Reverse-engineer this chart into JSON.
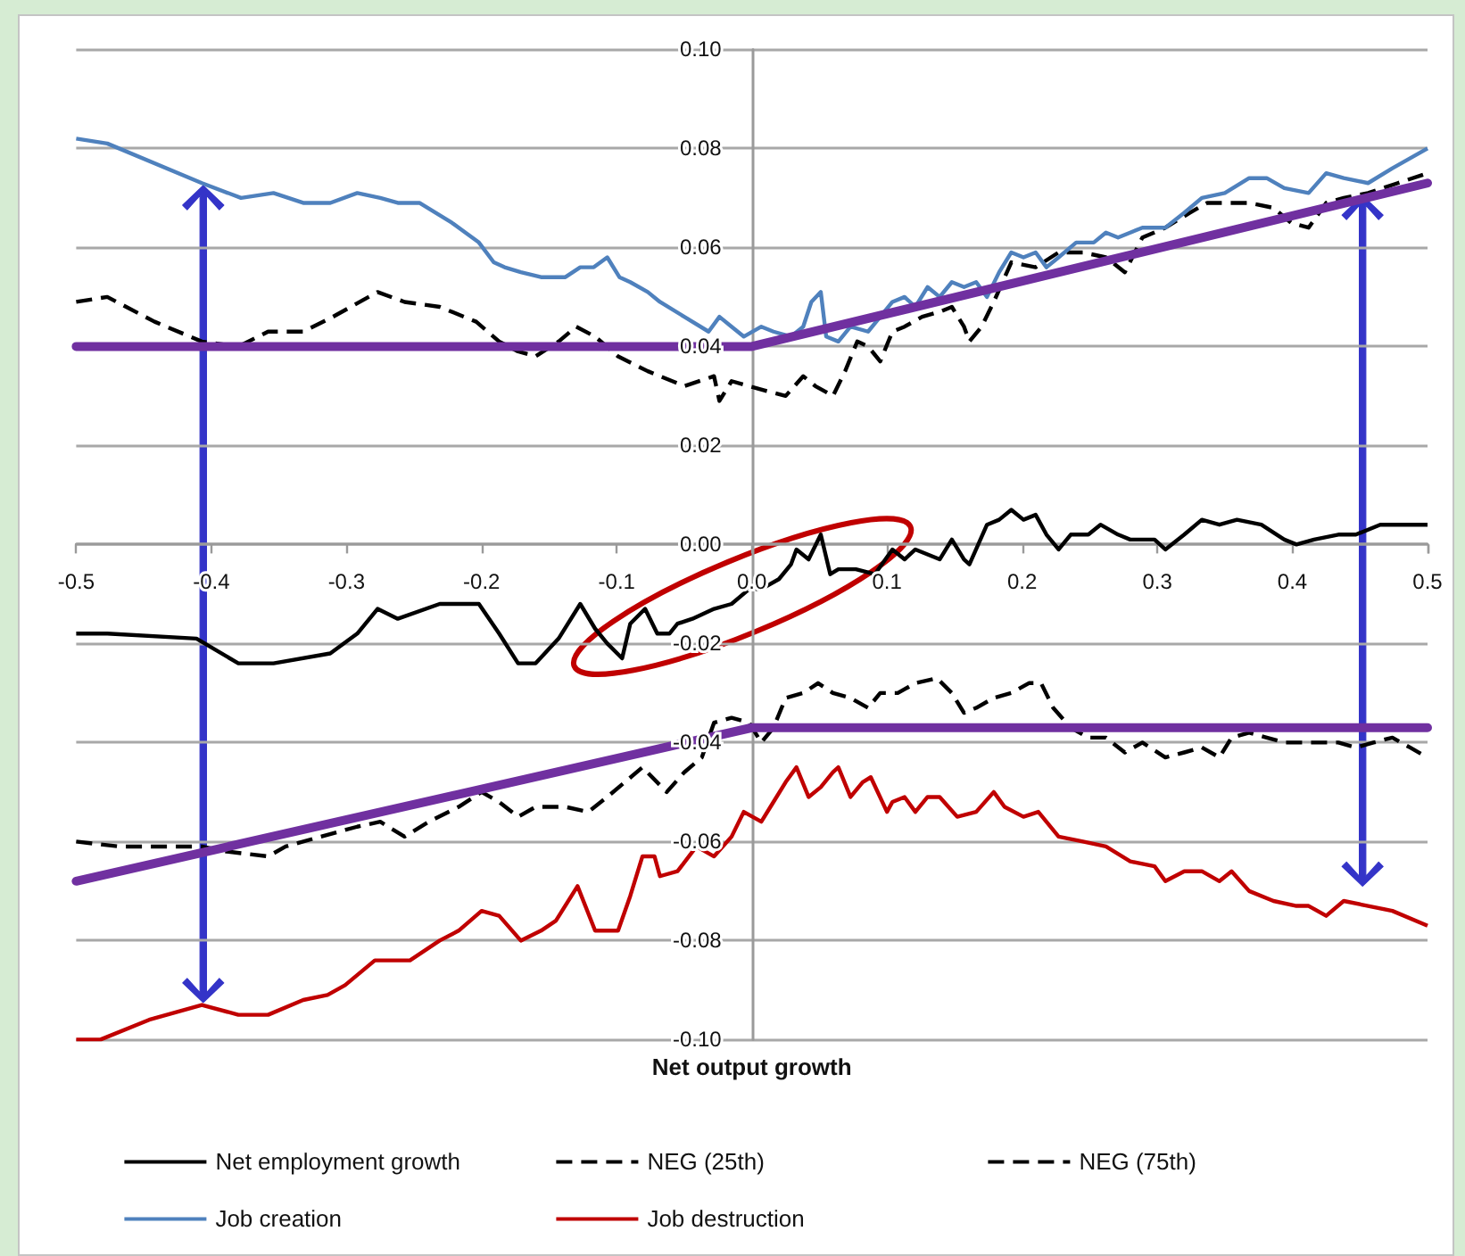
{
  "chart_data": {
    "type": "line",
    "xlabel": "Net output growth",
    "xlim": [
      -0.5,
      0.5
    ],
    "xticks": [
      -0.5,
      -0.4,
      -0.3,
      -0.2,
      -0.1,
      {
        "value": 0,
        "label": "0.0"
      },
      0.1,
      0.2,
      0.3,
      0.4,
      0.5
    ],
    "ylim": [
      -0.1,
      0.1
    ],
    "yticks": [
      {
        "value": -0.1,
        "label": "-0.10"
      },
      {
        "value": -0.08,
        "label": "-0.08"
      },
      {
        "value": -0.06,
        "label": "-0.06"
      },
      {
        "value": -0.04,
        "label": "-0.04"
      },
      {
        "value": -0.02,
        "label": "-0.02"
      },
      {
        "value": 0,
        "label": "0.00"
      },
      {
        "value": 0.02,
        "label": "0.02"
      },
      {
        "value": 0.04,
        "label": "0.04"
      },
      {
        "value": 0.06,
        "label": "0.06"
      },
      {
        "value": 0.08,
        "label": "0.08"
      },
      {
        "value": 0.1,
        "label": "0.10"
      }
    ],
    "grid": "y",
    "legend": "bottom",
    "marker": "none",
    "series": [
      {
        "name": "Net employment growth",
        "color": "#000000",
        "line_style": "solid",
        "x": [
          -0.5,
          -0.477,
          -0.411,
          -0.38,
          -0.354,
          -0.312,
          -0.292,
          -0.277,
          -0.262,
          -0.231,
          -0.202,
          -0.187,
          -0.173,
          -0.16,
          -0.143,
          -0.127,
          -0.116,
          -0.107,
          -0.096,
          -0.09,
          -0.079,
          -0.07,
          -0.061,
          -0.055,
          -0.044,
          -0.028,
          -0.015,
          -0.002,
          0.007,
          0.02,
          0.029,
          0.033,
          0.042,
          0.051,
          0.058,
          0.064,
          0.077,
          0.091,
          0.104,
          0.113,
          0.121,
          0.139,
          0.148,
          0.157,
          0.161,
          0.174,
          0.183,
          0.192,
          0.201,
          0.21,
          0.218,
          0.227,
          0.236,
          0.249,
          0.258,
          0.271,
          0.28,
          0.298,
          0.306,
          0.32,
          0.333,
          0.346,
          0.359,
          0.377,
          0.394,
          0.403,
          0.416,
          0.434,
          0.447,
          0.465,
          0.482,
          0.5
        ],
        "values": [
          -0.018,
          -0.018,
          -0.019,
          -0.024,
          -0.024,
          -0.022,
          -0.018,
          -0.013,
          -0.015,
          -0.012,
          -0.012,
          -0.018,
          -0.024,
          -0.024,
          -0.019,
          -0.012,
          -0.017,
          -0.02,
          -0.023,
          -0.016,
          -0.013,
          -0.018,
          -0.018,
          -0.016,
          -0.015,
          -0.013,
          -0.012,
          -0.009,
          -0.009,
          -0.007,
          -0.004,
          -0.001,
          -0.003,
          0.002,
          -0.006,
          -0.005,
          -0.005,
          -0.006,
          -0.001,
          -0.003,
          -0.001,
          -0.003,
          0.001,
          -0.003,
          -0.004,
          0.004,
          0.005,
          0.007,
          0.005,
          0.006,
          0.002,
          -0.001,
          0.002,
          0.002,
          0.004,
          0.002,
          0.001,
          0.001,
          -0.001,
          0.002,
          0.005,
          0.004,
          0.005,
          0.004,
          0.001,
          0,
          0.001,
          0.002,
          0.002,
          0.004,
          0.004,
          0.004
        ]
      },
      {
        "name": "NEG (25th)",
        "color": "#000000",
        "line_style": "dashed",
        "x": [
          -0.5,
          -0.468,
          -0.438,
          -0.407,
          -0.389,
          -0.358,
          -0.345,
          -0.319,
          -0.292,
          -0.275,
          -0.257,
          -0.239,
          -0.217,
          -0.2,
          -0.187,
          -0.173,
          -0.16,
          -0.138,
          -0.121,
          -0.107,
          -0.081,
          -0.063,
          -0.05,
          -0.037,
          -0.028,
          -0.015,
          -0.002,
          0.007,
          0.016,
          0.025,
          0.038,
          0.049,
          0.06,
          0.073,
          0.086,
          0.095,
          0.108,
          0.121,
          0.137,
          0.148,
          0.157,
          0.166,
          0.179,
          0.192,
          0.205,
          0.214,
          0.223,
          0.236,
          0.249,
          0.262,
          0.276,
          0.289,
          0.306,
          0.32,
          0.333,
          0.346,
          0.355,
          0.368,
          0.381,
          0.394,
          0.408,
          0.421,
          0.434,
          0.447,
          0.46,
          0.474,
          0.487,
          0.5
        ],
        "values": [
          -0.06,
          -0.061,
          -0.061,
          -0.061,
          -0.062,
          -0.063,
          -0.061,
          -0.059,
          -0.057,
          -0.056,
          -0.059,
          -0.056,
          -0.053,
          -0.05,
          -0.052,
          -0.055,
          -0.053,
          -0.053,
          -0.054,
          -0.051,
          -0.045,
          -0.05,
          -0.046,
          -0.043,
          -0.036,
          -0.035,
          -0.036,
          -0.04,
          -0.037,
          -0.031,
          -0.03,
          -0.028,
          -0.03,
          -0.031,
          -0.033,
          -0.03,
          -0.03,
          -0.028,
          -0.027,
          -0.03,
          -0.034,
          -0.033,
          -0.031,
          -0.03,
          -0.028,
          -0.028,
          -0.033,
          -0.037,
          -0.039,
          -0.039,
          -0.042,
          -0.04,
          -0.043,
          -0.042,
          -0.041,
          -0.043,
          -0.039,
          -0.038,
          -0.039,
          -0.04,
          -0.04,
          -0.04,
          -0.04,
          -0.041,
          -0.04,
          -0.039,
          -0.041,
          -0.043
        ]
      },
      {
        "name": "NEG (75th)",
        "color": "#000000",
        "line_style": "dashed",
        "x": [
          -0.5,
          -0.477,
          -0.442,
          -0.407,
          -0.38,
          -0.358,
          -0.332,
          -0.31,
          -0.277,
          -0.257,
          -0.231,
          -0.204,
          -0.187,
          -0.173,
          -0.16,
          -0.143,
          -0.13,
          -0.116,
          -0.099,
          -0.077,
          -0.05,
          -0.028,
          -0.024,
          -0.015,
          -0.002,
          0.011,
          0.025,
          0.038,
          0.047,
          0.06,
          0.069,
          0.078,
          0.086,
          0.095,
          0.104,
          0.113,
          0.126,
          0.139,
          0.148,
          0.157,
          0.161,
          0.17,
          0.179,
          0.192,
          0.21,
          0.227,
          0.245,
          0.262,
          0.276,
          0.289,
          0.306,
          0.324,
          0.337,
          0.355,
          0.368,
          0.386,
          0.399,
          0.412,
          0.425,
          0.438,
          0.456,
          0.478,
          0.5
        ],
        "values": [
          0.049,
          0.05,
          0.045,
          0.041,
          0.04,
          0.043,
          0.043,
          0.046,
          0.051,
          0.049,
          0.048,
          0.045,
          0.041,
          0.039,
          0.038,
          0.041,
          0.044,
          0.042,
          0.038,
          0.035,
          0.032,
          0.034,
          0.029,
          0.033,
          0.032,
          0.031,
          0.03,
          0.034,
          0.032,
          0.03,
          0.035,
          0.041,
          0.04,
          0.037,
          0.043,
          0.044,
          0.046,
          0.047,
          0.048,
          0.044,
          0.041,
          0.044,
          0.049,
          0.057,
          0.056,
          0.059,
          0.059,
          0.058,
          0.055,
          0.062,
          0.064,
          0.067,
          0.069,
          0.069,
          0.069,
          0.068,
          0.065,
          0.064,
          0.069,
          0.07,
          0.071,
          0.073,
          0.075
        ]
      },
      {
        "name": "Job creation",
        "color": "#4f81bd",
        "line_style": "solid",
        "x": [
          -0.5,
          -0.477,
          -0.407,
          -0.378,
          -0.354,
          -0.332,
          -0.312,
          -0.292,
          -0.275,
          -0.262,
          -0.246,
          -0.222,
          -0.202,
          -0.191,
          -0.183,
          -0.171,
          -0.156,
          -0.138,
          -0.127,
          -0.117,
          -0.107,
          -0.098,
          -0.09,
          -0.077,
          -0.068,
          -0.05,
          -0.032,
          -0.024,
          -0.015,
          -0.006,
          0.007,
          0.016,
          0.029,
          0.038,
          0.044,
          0.051,
          0.055,
          0.064,
          0.073,
          0.086,
          0.095,
          0.104,
          0.113,
          0.121,
          0.13,
          0.139,
          0.148,
          0.157,
          0.166,
          0.174,
          0.183,
          0.192,
          0.201,
          0.21,
          0.218,
          0.227,
          0.24,
          0.253,
          0.262,
          0.271,
          0.28,
          0.289,
          0.306,
          0.32,
          0.333,
          0.35,
          0.368,
          0.381,
          0.394,
          0.412,
          0.425,
          0.438,
          0.456,
          0.474,
          0.5
        ],
        "values": [
          0.082,
          0.081,
          0.073,
          0.07,
          0.071,
          0.069,
          0.069,
          0.071,
          0.07,
          0.069,
          0.069,
          0.065,
          0.061,
          0.057,
          0.056,
          0.055,
          0.054,
          0.054,
          0.056,
          0.056,
          0.058,
          0.054,
          0.053,
          0.051,
          0.049,
          0.046,
          0.043,
          0.046,
          0.044,
          0.042,
          0.044,
          0.043,
          0.042,
          0.044,
          0.049,
          0.051,
          0.042,
          0.041,
          0.044,
          0.043,
          0.046,
          0.049,
          0.05,
          0.048,
          0.052,
          0.05,
          0.053,
          0.052,
          0.053,
          0.05,
          0.055,
          0.059,
          0.058,
          0.059,
          0.056,
          0.058,
          0.061,
          0.061,
          0.063,
          0.062,
          0.063,
          0.064,
          0.064,
          0.067,
          0.07,
          0.071,
          0.074,
          0.074,
          0.072,
          0.071,
          0.075,
          0.074,
          0.073,
          0.076,
          0.08
        ]
      },
      {
        "name": "Job destruction",
        "color": "#c00000",
        "line_style": "solid",
        "x": [
          -0.5,
          -0.482,
          -0.446,
          -0.407,
          -0.38,
          -0.358,
          -0.332,
          -0.314,
          -0.301,
          -0.279,
          -0.253,
          -0.231,
          -0.217,
          -0.2,
          -0.187,
          -0.171,
          -0.156,
          -0.145,
          -0.129,
          -0.116,
          -0.099,
          -0.09,
          -0.081,
          -0.072,
          -0.068,
          -0.055,
          -0.041,
          -0.028,
          -0.015,
          -0.006,
          0.007,
          0.016,
          0.025,
          0.033,
          0.042,
          0.051,
          0.06,
          0.064,
          0.073,
          0.082,
          0.088,
          0.1,
          0.104,
          0.113,
          0.121,
          0.13,
          0.139,
          0.152,
          0.166,
          0.179,
          0.187,
          0.201,
          0.212,
          0.227,
          0.245,
          0.262,
          0.28,
          0.298,
          0.306,
          0.32,
          0.333,
          0.346,
          0.355,
          0.368,
          0.386,
          0.403,
          0.412,
          0.425,
          0.438,
          0.456,
          0.474,
          0.5
        ],
        "values": [
          -0.1,
          -0.1,
          -0.096,
          -0.093,
          -0.095,
          -0.095,
          -0.092,
          -0.091,
          -0.089,
          -0.084,
          -0.084,
          -0.08,
          -0.078,
          -0.074,
          -0.075,
          -0.08,
          -0.078,
          -0.076,
          -0.069,
          -0.078,
          -0.078,
          -0.071,
          -0.063,
          -0.063,
          -0.067,
          -0.066,
          -0.061,
          -0.063,
          -0.059,
          -0.054,
          -0.056,
          -0.052,
          -0.048,
          -0.045,
          -0.051,
          -0.049,
          -0.046,
          -0.045,
          -0.051,
          -0.048,
          -0.047,
          -0.054,
          -0.052,
          -0.051,
          -0.054,
          -0.051,
          -0.051,
          -0.055,
          -0.054,
          -0.05,
          -0.053,
          -0.055,
          -0.054,
          -0.059,
          -0.06,
          -0.061,
          -0.064,
          -0.065,
          -0.068,
          -0.066,
          -0.066,
          -0.068,
          -0.066,
          -0.07,
          -0.072,
          -0.073,
          -0.073,
          -0.075,
          -0.072,
          -0.073,
          -0.074,
          -0.077
        ]
      },
      {
        "color": "#7030a0",
        "line_style": "solid",
        "x": [
          -0.5,
          0,
          0.5
        ],
        "values": [
          0.04,
          0.04,
          0.073
        ]
      },
      {
        "color": "#7030a0",
        "line_style": "solid",
        "x": [
          -0.5,
          0,
          0.5
        ],
        "values": [
          -0.068,
          -0.037,
          -0.037
        ]
      }
    ]
  }
}
